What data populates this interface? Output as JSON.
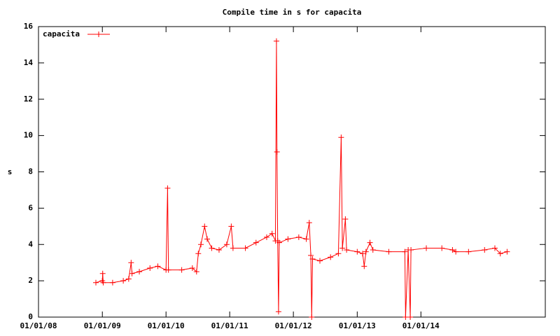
{
  "chart_data": {
    "type": "line",
    "title": "Compile time in s for capacita",
    "y_label": "s",
    "x": [
      "2008-11-25",
      "2009-01-01",
      "2009-01-03",
      "2009-01-06",
      "2009-03-01",
      "2009-05-01",
      "2009-06-01",
      "2009-06-15",
      "2009-06-20",
      "2009-08-01",
      "2009-10-01",
      "2009-11-15",
      "2010-01-01",
      "2010-01-10",
      "2010-01-15",
      "2010-04-01",
      "2010-06-01",
      "2010-06-25",
      "2010-07-05",
      "2010-07-20",
      "2010-08-10",
      "2010-08-25",
      "2010-09-20",
      "2010-11-01",
      "2010-12-15",
      "2011-01-10",
      "2011-01-20",
      "2011-04-01",
      "2011-06-01",
      "2011-08-01",
      "2011-09-01",
      "2011-09-20",
      "2011-09-26",
      "2011-09-29",
      "2011-10-03",
      "2011-10-08",
      "2011-10-12",
      "2011-12-01",
      "2012-02-01",
      "2012-03-15",
      "2012-04-01",
      "2012-04-10",
      "2012-04-15",
      "2012-04-20",
      "2012-06-01",
      "2012-08-01",
      "2012-09-15",
      "2012-10-01",
      "2012-10-08",
      "2012-10-25",
      "2012-11-01",
      "2013-01-01",
      "2013-02-01",
      "2013-02-10",
      "2013-02-20",
      "2013-03-15",
      "2013-04-01",
      "2013-07-01",
      "2013-10-01",
      "2013-10-05",
      "2013-10-20",
      "2013-11-01",
      "2013-11-05",
      "2014-02-01",
      "2014-05-01",
      "2014-07-01",
      "2014-07-20",
      "2014-10-01",
      "2015-01-01",
      "2015-03-01",
      "2015-04-01",
      "2015-05-10"
    ],
    "series": [
      {
        "name": "capacita",
        "color": "#ff0000",
        "values": [
          1.9,
          2.0,
          2.4,
          1.9,
          1.9,
          2.0,
          2.1,
          3.0,
          2.4,
          2.5,
          2.7,
          2.8,
          2.6,
          7.1,
          2.6,
          2.6,
          2.7,
          2.5,
          3.5,
          4.0,
          5.0,
          4.3,
          3.8,
          3.7,
          4.0,
          5.0,
          3.8,
          3.8,
          4.1,
          4.4,
          4.6,
          4.2,
          15.2,
          9.1,
          4.2,
          0.3,
          4.1,
          4.3,
          4.4,
          4.3,
          5.2,
          3.4,
          0.0,
          3.2,
          3.1,
          3.3,
          3.5,
          9.9,
          3.8,
          5.4,
          3.7,
          3.6,
          3.5,
          2.8,
          3.6,
          4.1,
          3.7,
          3.6,
          3.6,
          0.0,
          3.7,
          0.0,
          3.7,
          3.8,
          3.8,
          3.7,
          3.6,
          3.6,
          3.7,
          3.8,
          3.5,
          3.6
        ]
      }
    ],
    "xlim": [
      "2008-01-01",
      "2015-12-15"
    ],
    "xticks": [
      {
        "value": "2008-01-01",
        "label": "01/01/08"
      },
      {
        "value": "2009-01-01",
        "label": "01/01/09"
      },
      {
        "value": "2010-01-01",
        "label": "01/01/10"
      },
      {
        "value": "2011-01-01",
        "label": "01/01/11"
      },
      {
        "value": "2012-01-01",
        "label": "01/01/12"
      },
      {
        "value": "2013-01-01",
        "label": "01/01/13"
      },
      {
        "value": "2014-01-01",
        "label": "01/01/14"
      }
    ],
    "ylim": [
      0,
      16
    ],
    "yticks": [
      0,
      2,
      4,
      6,
      8,
      10,
      12,
      14,
      16
    ],
    "legend": "top-left"
  }
}
